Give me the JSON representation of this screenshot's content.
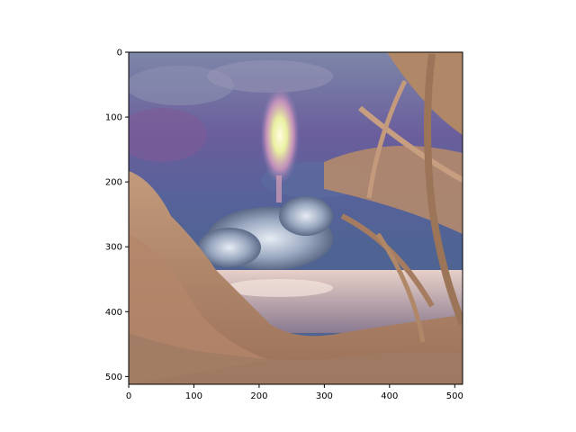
{
  "chart_data": {
    "type": "image",
    "title": "",
    "xlabel": "",
    "ylabel": "",
    "xlim": [
      0,
      512
    ],
    "ylim": [
      512,
      0
    ],
    "x_ticks": [
      0,
      100,
      200,
      300,
      400,
      500
    ],
    "y_ticks": [
      0,
      100,
      200,
      300,
      400,
      500
    ],
    "grid": false,
    "legend": "none",
    "image_content": "stylized painting of a rocket launch at dusk with smoke cloud, water and palm fronds"
  },
  "colors": {
    "sky_top": "#5a6a9a",
    "sky_mid": "#6f5f9f",
    "sky_low": "#4a5a8a",
    "flame": "#f2e6a0",
    "smoke": "#c8d2e0",
    "water": "#d8b8b8",
    "foliage": "#c89a78",
    "palm": "#b88866",
    "axis": "#000000"
  }
}
